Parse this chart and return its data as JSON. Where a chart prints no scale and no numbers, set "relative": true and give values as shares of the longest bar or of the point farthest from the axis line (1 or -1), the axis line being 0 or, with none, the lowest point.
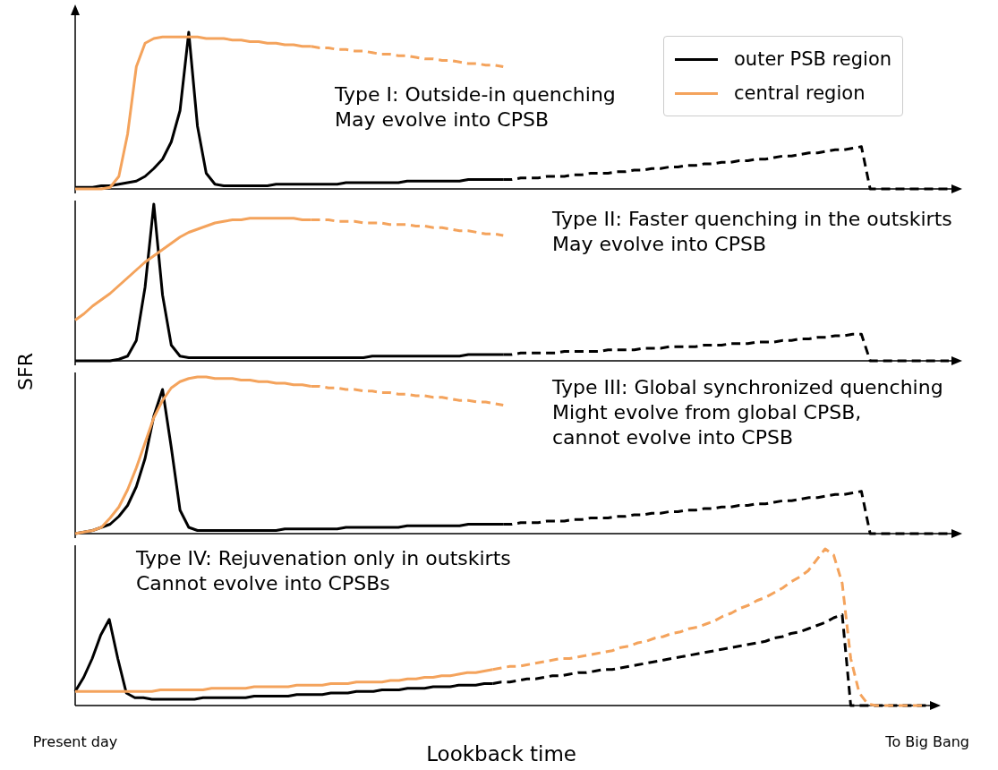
{
  "chart_data": [
    {
      "type": "line",
      "relative": true,
      "categories": [
        null,
        null,
        null,
        null,
        null,
        null,
        null,
        null,
        null,
        null,
        null,
        null,
        null,
        null,
        null,
        null,
        null,
        null,
        null,
        null,
        null,
        null,
        null,
        null,
        null,
        null,
        null,
        null,
        null,
        null,
        null,
        null,
        null,
        null,
        null,
        null,
        null,
        null,
        null,
        null,
        null,
        null,
        null,
        null,
        null,
        null,
        null,
        null,
        null,
        null,
        null,
        null,
        null,
        null,
        null,
        null,
        null,
        null,
        null,
        null,
        null,
        null,
        null,
        null,
        null,
        null,
        null,
        null,
        null,
        null,
        null,
        null,
        null,
        null,
        null,
        null,
        null,
        null,
        null,
        null,
        null,
        null,
        null,
        null,
        null,
        null,
        null,
        null,
        null,
        null,
        null,
        null,
        null,
        null,
        null,
        null,
        null,
        null,
        null,
        null,
        null
      ],
      "legend": "top right",
      "annotations": [
        "Type I: Outside-in quenching",
        "May evolve into CPSB"
      ],
      "series": [
        {
          "name": "outer PSB region",
          "color": "#000000",
          "line_style": "solid",
          "values": [
            0.01,
            0.01,
            0.01,
            0.02,
            0.02,
            0.03,
            0.04,
            0.05,
            0.08,
            0.13,
            0.19,
            0.3,
            0.5,
            1.0,
            0.4,
            0.1,
            0.03,
            0.02,
            0.02,
            0.02,
            0.02,
            0.02,
            0.02,
            0.03,
            0.03,
            0.03,
            0.03,
            0.03,
            0.03,
            0.03,
            0.03,
            0.04,
            0.04,
            0.04,
            0.04,
            0.04,
            0.04,
            0.04,
            0.05,
            0.05,
            0.05,
            0.05,
            0.05,
            0.05,
            0.05,
            0.06,
            0.06,
            0.06,
            0.06,
            0.06,
            null,
            null,
            null,
            null,
            null,
            null,
            null,
            null,
            null,
            null,
            null,
            null,
            null,
            null,
            null,
            null,
            null,
            null,
            null,
            null,
            null,
            null,
            null,
            null,
            null,
            null,
            null,
            null,
            null,
            null,
            null,
            null,
            null,
            null,
            null,
            null,
            null,
            null,
            null,
            null,
            null,
            null,
            null,
            null,
            null,
            null,
            null,
            null,
            null,
            null,
            null
          ]
        },
        {
          "color": "#000000",
          "line_style": "dashed",
          "values": [
            null,
            null,
            null,
            null,
            null,
            null,
            null,
            null,
            null,
            null,
            null,
            null,
            null,
            null,
            null,
            null,
            null,
            null,
            null,
            null,
            null,
            null,
            null,
            null,
            null,
            null,
            null,
            null,
            null,
            null,
            null,
            null,
            null,
            null,
            null,
            null,
            null,
            null,
            null,
            null,
            null,
            null,
            null,
            null,
            null,
            null,
            null,
            null,
            null,
            0.06,
            0.06,
            0.07,
            0.07,
            0.07,
            0.08,
            0.08,
            0.08,
            0.09,
            0.09,
            0.1,
            0.1,
            0.1,
            0.11,
            0.11,
            0.12,
            0.12,
            0.13,
            0.13,
            0.14,
            0.14,
            0.15,
            0.15,
            0.16,
            0.16,
            0.17,
            0.17,
            0.18,
            0.18,
            0.19,
            0.19,
            0.2,
            0.21,
            0.21,
            0.22,
            0.23,
            0.23,
            0.24,
            0.25,
            0.25,
            0.26,
            0.27,
            0,
            0,
            0,
            0,
            0,
            0,
            0,
            0,
            0,
            0
          ]
        },
        {
          "name": "central region",
          "color": "#f4a35c",
          "line_style": "solid",
          "values": [
            0,
            0,
            0,
            0,
            0.01,
            0.08,
            0.35,
            0.78,
            0.93,
            0.96,
            0.97,
            0.97,
            0.97,
            0.97,
            0.97,
            0.96,
            0.96,
            0.96,
            0.95,
            0.95,
            0.94,
            0.94,
            0.93,
            0.93,
            0.92,
            0.92,
            0.91,
            0.91,
            null,
            null,
            null,
            null,
            null,
            null,
            null,
            null,
            null,
            null,
            null,
            null,
            null,
            null,
            null,
            null,
            null,
            null,
            null,
            null,
            null,
            null,
            null,
            null,
            null,
            null,
            null,
            null,
            null,
            null,
            null,
            null,
            null,
            null,
            null,
            null,
            null,
            null,
            null,
            null,
            null,
            null,
            null,
            null,
            null,
            null,
            null,
            null,
            null,
            null,
            null,
            null,
            null,
            null,
            null,
            null,
            null,
            null,
            null,
            null,
            null,
            null,
            null,
            null,
            null,
            null,
            null,
            null,
            null,
            null,
            null,
            null,
            null
          ]
        },
        {
          "color": "#f4a35c",
          "line_style": "dashed",
          "values": [
            null,
            null,
            null,
            null,
            null,
            null,
            null,
            null,
            null,
            null,
            null,
            null,
            null,
            null,
            null,
            null,
            null,
            null,
            null,
            null,
            null,
            null,
            null,
            null,
            null,
            null,
            null,
            0.91,
            0.9,
            0.9,
            0.89,
            0.89,
            0.88,
            0.88,
            0.87,
            0.86,
            0.86,
            0.85,
            0.85,
            0.84,
            0.83,
            0.83,
            0.82,
            0.82,
            0.81,
            0.8,
            0.8,
            0.79,
            0.79,
            0.78,
            null,
            null,
            null,
            null,
            null,
            null,
            null,
            null,
            null,
            null,
            null,
            null,
            null,
            null,
            null,
            null,
            null,
            null,
            null,
            null,
            null,
            null,
            null,
            null,
            null,
            null,
            null,
            null,
            null,
            null,
            null,
            null,
            null,
            null,
            null,
            null,
            null,
            null,
            null,
            null,
            null,
            null,
            null,
            null,
            null,
            null,
            null,
            null,
            null,
            null,
            null
          ]
        }
      ]
    },
    {
      "type": "line",
      "relative": true,
      "categories": [
        null,
        null,
        null,
        null,
        null,
        null,
        null,
        null,
        null,
        null,
        null,
        null,
        null,
        null,
        null,
        null,
        null,
        null,
        null,
        null,
        null,
        null,
        null,
        null,
        null,
        null,
        null,
        null,
        null,
        null,
        null,
        null,
        null,
        null,
        null,
        null,
        null,
        null,
        null,
        null,
        null,
        null,
        null,
        null,
        null,
        null,
        null,
        null,
        null,
        null,
        null,
        null,
        null,
        null,
        null,
        null,
        null,
        null,
        null,
        null,
        null,
        null,
        null,
        null,
        null,
        null,
        null,
        null,
        null,
        null,
        null,
        null,
        null,
        null,
        null,
        null,
        null,
        null,
        null,
        null,
        null,
        null,
        null,
        null,
        null,
        null,
        null,
        null,
        null,
        null,
        null,
        null,
        null,
        null,
        null,
        null,
        null,
        null,
        null,
        null,
        null
      ],
      "ylabel": "SFR",
      "annotations": [
        "Type II: Faster quenching in the outskirts",
        "May evolve into CPSB"
      ],
      "series": [
        {
          "color": "#000000",
          "line_style": "solid",
          "values": [
            0,
            0,
            0,
            0,
            0,
            0.01,
            0.03,
            0.13,
            0.47,
            1.0,
            0.42,
            0.1,
            0.03,
            0.02,
            0.02,
            0.02,
            0.02,
            0.02,
            0.02,
            0.02,
            0.02,
            0.02,
            0.02,
            0.02,
            0.02,
            0.02,
            0.02,
            0.02,
            0.02,
            0.02,
            0.02,
            0.02,
            0.02,
            0.02,
            0.03,
            0.03,
            0.03,
            0.03,
            0.03,
            0.03,
            0.03,
            0.03,
            0.03,
            0.03,
            0.03,
            0.04,
            0.04,
            0.04,
            0.04,
            0.04,
            null,
            null,
            null,
            null,
            null,
            null,
            null,
            null,
            null,
            null,
            null,
            null,
            null,
            null,
            null,
            null,
            null,
            null,
            null,
            null,
            null,
            null,
            null,
            null,
            null,
            null,
            null,
            null,
            null,
            null,
            null,
            null,
            null,
            null,
            null,
            null,
            null,
            null,
            null,
            null,
            null,
            null,
            null,
            null,
            null,
            null,
            null,
            null,
            null,
            null,
            null
          ]
        },
        {
          "color": "#000000",
          "line_style": "dashed",
          "values": [
            null,
            null,
            null,
            null,
            null,
            null,
            null,
            null,
            null,
            null,
            null,
            null,
            null,
            null,
            null,
            null,
            null,
            null,
            null,
            null,
            null,
            null,
            null,
            null,
            null,
            null,
            null,
            null,
            null,
            null,
            null,
            null,
            null,
            null,
            null,
            null,
            null,
            null,
            null,
            null,
            null,
            null,
            null,
            null,
            null,
            null,
            null,
            null,
            null,
            0.04,
            0.04,
            0.05,
            0.05,
            0.05,
            0.05,
            0.05,
            0.06,
            0.06,
            0.06,
            0.06,
            0.06,
            0.07,
            0.07,
            0.07,
            0.07,
            0.08,
            0.08,
            0.08,
            0.09,
            0.09,
            0.09,
            0.09,
            0.1,
            0.1,
            0.1,
            0.11,
            0.11,
            0.11,
            0.12,
            0.12,
            0.12,
            0.13,
            0.13,
            0.14,
            0.14,
            0.15,
            0.15,
            0.16,
            0.16,
            0.17,
            0.17,
            0,
            0,
            0,
            0,
            0,
            0,
            0,
            0,
            0,
            0
          ]
        },
        {
          "color": "#f4a35c",
          "line_style": "solid",
          "values": [
            0.26,
            0.3,
            0.35,
            0.39,
            0.43,
            0.48,
            0.53,
            0.58,
            0.63,
            0.67,
            0.71,
            0.75,
            0.79,
            0.82,
            0.84,
            0.86,
            0.88,
            0.89,
            0.9,
            0.9,
            0.91,
            0.91,
            0.91,
            0.91,
            0.91,
            0.91,
            0.9,
            0.9,
            null,
            null,
            null,
            null,
            null,
            null,
            null,
            null,
            null,
            null,
            null,
            null,
            null,
            null,
            null,
            null,
            null,
            null,
            null,
            null,
            null,
            null,
            null,
            null,
            null,
            null,
            null,
            null,
            null,
            null,
            null,
            null,
            null,
            null,
            null,
            null,
            null,
            null,
            null,
            null,
            null,
            null,
            null,
            null,
            null,
            null,
            null,
            null,
            null,
            null,
            null,
            null,
            null,
            null,
            null,
            null,
            null,
            null,
            null,
            null,
            null,
            null,
            null,
            null,
            null,
            null,
            null,
            null,
            null,
            null,
            null,
            null,
            null
          ]
        },
        {
          "color": "#f4a35c",
          "line_style": "dashed",
          "values": [
            null,
            null,
            null,
            null,
            null,
            null,
            null,
            null,
            null,
            null,
            null,
            null,
            null,
            null,
            null,
            null,
            null,
            null,
            null,
            null,
            null,
            null,
            null,
            null,
            null,
            null,
            null,
            0.9,
            0.9,
            0.9,
            0.89,
            0.89,
            0.89,
            0.88,
            0.88,
            0.88,
            0.87,
            0.87,
            0.87,
            0.86,
            0.86,
            0.85,
            0.85,
            0.84,
            0.83,
            0.83,
            0.82,
            0.81,
            0.81,
            0.8,
            null,
            null,
            null,
            null,
            null,
            null,
            null,
            null,
            null,
            null,
            null,
            null,
            null,
            null,
            null,
            null,
            null,
            null,
            null,
            null,
            null,
            null,
            null,
            null,
            null,
            null,
            null,
            null,
            null,
            null,
            null,
            null,
            null,
            null,
            null,
            null,
            null,
            null,
            null,
            null,
            null,
            null,
            null,
            null,
            null,
            null,
            null,
            null,
            null,
            null,
            null
          ]
        }
      ]
    },
    {
      "type": "line",
      "relative": true,
      "categories": [
        null,
        null,
        null,
        null,
        null,
        null,
        null,
        null,
        null,
        null,
        null,
        null,
        null,
        null,
        null,
        null,
        null,
        null,
        null,
        null,
        null,
        null,
        null,
        null,
        null,
        null,
        null,
        null,
        null,
        null,
        null,
        null,
        null,
        null,
        null,
        null,
        null,
        null,
        null,
        null,
        null,
        null,
        null,
        null,
        null,
        null,
        null,
        null,
        null,
        null,
        null,
        null,
        null,
        null,
        null,
        null,
        null,
        null,
        null,
        null,
        null,
        null,
        null,
        null,
        null,
        null,
        null,
        null,
        null,
        null,
        null,
        null,
        null,
        null,
        null,
        null,
        null,
        null,
        null,
        null,
        null,
        null,
        null,
        null,
        null,
        null,
        null,
        null,
        null,
        null,
        null,
        null,
        null,
        null,
        null,
        null,
        null,
        null,
        null,
        null,
        null
      ],
      "annotations": [
        "Type III: Global synchronized quenching",
        "Might evolve from global CPSB,",
        "cannot evolve into CPSB"
      ],
      "series": [
        {
          "color": "#000000",
          "line_style": "solid",
          "values": [
            0,
            0.01,
            0.02,
            0.04,
            0.06,
            0.11,
            0.18,
            0.3,
            0.48,
            0.75,
            0.92,
            0.55,
            0.15,
            0.04,
            0.02,
            0.02,
            0.02,
            0.02,
            0.02,
            0.02,
            0.02,
            0.02,
            0.02,
            0.02,
            0.03,
            0.03,
            0.03,
            0.03,
            0.03,
            0.03,
            0.03,
            0.04,
            0.04,
            0.04,
            0.04,
            0.04,
            0.04,
            0.04,
            0.05,
            0.05,
            0.05,
            0.05,
            0.05,
            0.05,
            0.05,
            0.06,
            0.06,
            0.06,
            0.06,
            0.06,
            null,
            null,
            null,
            null,
            null,
            null,
            null,
            null,
            null,
            null,
            null,
            null,
            null,
            null,
            null,
            null,
            null,
            null,
            null,
            null,
            null,
            null,
            null,
            null,
            null,
            null,
            null,
            null,
            null,
            null,
            null,
            null,
            null,
            null,
            null,
            null,
            null,
            null,
            null,
            null,
            null,
            null,
            null,
            null,
            null,
            null,
            null,
            null,
            null,
            null,
            null
          ]
        },
        {
          "color": "#000000",
          "line_style": "dashed",
          "values": [
            null,
            null,
            null,
            null,
            null,
            null,
            null,
            null,
            null,
            null,
            null,
            null,
            null,
            null,
            null,
            null,
            null,
            null,
            null,
            null,
            null,
            null,
            null,
            null,
            null,
            null,
            null,
            null,
            null,
            null,
            null,
            null,
            null,
            null,
            null,
            null,
            null,
            null,
            null,
            null,
            null,
            null,
            null,
            null,
            null,
            null,
            null,
            null,
            null,
            0.06,
            0.06,
            0.07,
            0.07,
            0.07,
            0.08,
            0.08,
            0.08,
            0.09,
            0.09,
            0.1,
            0.1,
            0.1,
            0.11,
            0.11,
            0.12,
            0.12,
            0.13,
            0.13,
            0.14,
            0.14,
            0.15,
            0.15,
            0.16,
            0.16,
            0.17,
            0.17,
            0.18,
            0.18,
            0.19,
            0.19,
            0.2,
            0.21,
            0.21,
            0.22,
            0.23,
            0.23,
            0.24,
            0.25,
            0.25,
            0.26,
            0.27,
            0,
            0,
            0,
            0,
            0,
            0,
            0,
            0,
            0,
            0
          ]
        },
        {
          "color": "#f4a35c",
          "line_style": "solid",
          "values": [
            0,
            0.01,
            0.02,
            0.04,
            0.1,
            0.17,
            0.28,
            0.42,
            0.58,
            0.74,
            0.85,
            0.93,
            0.97,
            0.99,
            1.0,
            1.0,
            0.99,
            0.99,
            0.99,
            0.98,
            0.98,
            0.97,
            0.97,
            0.96,
            0.96,
            0.95,
            0.95,
            0.94,
            null,
            null,
            null,
            null,
            null,
            null,
            null,
            null,
            null,
            null,
            null,
            null,
            null,
            null,
            null,
            null,
            null,
            null,
            null,
            null,
            null,
            null,
            null,
            null,
            null,
            null,
            null,
            null,
            null,
            null,
            null,
            null,
            null,
            null,
            null,
            null,
            null,
            null,
            null,
            null,
            null,
            null,
            null,
            null,
            null,
            null,
            null,
            null,
            null,
            null,
            null,
            null,
            null,
            null,
            null,
            null,
            null,
            null,
            null,
            null,
            null,
            null,
            null,
            null,
            null,
            null,
            null,
            null,
            null,
            null,
            null,
            null,
            null
          ]
        },
        {
          "color": "#f4a35c",
          "line_style": "dashed",
          "values": [
            null,
            null,
            null,
            null,
            null,
            null,
            null,
            null,
            null,
            null,
            null,
            null,
            null,
            null,
            null,
            null,
            null,
            null,
            null,
            null,
            null,
            null,
            null,
            null,
            null,
            null,
            null,
            0.94,
            0.94,
            0.93,
            0.93,
            0.92,
            0.92,
            0.91,
            0.91,
            0.9,
            0.9,
            0.89,
            0.89,
            0.88,
            0.88,
            0.87,
            0.87,
            0.86,
            0.85,
            0.85,
            0.84,
            0.84,
            0.83,
            0.82,
            null,
            null,
            null,
            null,
            null,
            null,
            null,
            null,
            null,
            null,
            null,
            null,
            null,
            null,
            null,
            null,
            null,
            null,
            null,
            null,
            null,
            null,
            null,
            null,
            null,
            null,
            null,
            null,
            null,
            null,
            null,
            null,
            null,
            null,
            null,
            null,
            null,
            null,
            null,
            null,
            null,
            null,
            null,
            null,
            null,
            null,
            null,
            null,
            null,
            null,
            null
          ]
        }
      ]
    },
    {
      "type": "line",
      "relative": true,
      "categories": [
        "Present day",
        null,
        null,
        null,
        null,
        null,
        null,
        null,
        null,
        null,
        null,
        null,
        null,
        null,
        null,
        null,
        null,
        null,
        null,
        null,
        null,
        null,
        null,
        null,
        null,
        null,
        null,
        null,
        null,
        null,
        null,
        null,
        null,
        null,
        null,
        null,
        null,
        null,
        null,
        null,
        null,
        null,
        null,
        null,
        null,
        null,
        null,
        null,
        null,
        null,
        null,
        null,
        null,
        null,
        null,
        null,
        null,
        null,
        null,
        null,
        null,
        null,
        null,
        null,
        null,
        null,
        null,
        null,
        null,
        null,
        null,
        null,
        null,
        null,
        null,
        null,
        null,
        null,
        null,
        null,
        null,
        null,
        null,
        null,
        null,
        null,
        null,
        null,
        null,
        null,
        null,
        null,
        null,
        null,
        null,
        null,
        null,
        null,
        null,
        null,
        "To Big Bang"
      ],
      "tick_labels": "x",
      "xlabel": "Lookback time",
      "annotations": [
        "Type IV: Rejuvenation only in outskirts",
        "Cannot evolve into CPSBs"
      ],
      "series": [
        {
          "color": "#000000",
          "line_style": "solid",
          "values": [
            0.09,
            0.18,
            0.3,
            0.45,
            0.55,
            0.3,
            0.08,
            0.05,
            0.05,
            0.04,
            0.04,
            0.04,
            0.04,
            0.04,
            0.04,
            0.05,
            0.05,
            0.05,
            0.05,
            0.05,
            0.05,
            0.06,
            0.06,
            0.06,
            0.06,
            0.06,
            0.07,
            0.07,
            0.07,
            0.07,
            0.08,
            0.08,
            0.08,
            0.09,
            0.09,
            0.09,
            0.1,
            0.1,
            0.1,
            0.11,
            0.11,
            0.11,
            0.12,
            0.12,
            0.12,
            0.13,
            0.13,
            0.13,
            0.14,
            0.14,
            null,
            null,
            null,
            null,
            null,
            null,
            null,
            null,
            null,
            null,
            null,
            null,
            null,
            null,
            null,
            null,
            null,
            null,
            null,
            null,
            null,
            null,
            null,
            null,
            null,
            null,
            null,
            null,
            null,
            null,
            null,
            null,
            null,
            null,
            null,
            null,
            null,
            null,
            null,
            null,
            null,
            null,
            null,
            null,
            null,
            null,
            null,
            null,
            null,
            null,
            null
          ]
        },
        {
          "color": "#000000",
          "line_style": "dashed",
          "values": [
            null,
            null,
            null,
            null,
            null,
            null,
            null,
            null,
            null,
            null,
            null,
            null,
            null,
            null,
            null,
            null,
            null,
            null,
            null,
            null,
            null,
            null,
            null,
            null,
            null,
            null,
            null,
            null,
            null,
            null,
            null,
            null,
            null,
            null,
            null,
            null,
            null,
            null,
            null,
            null,
            null,
            null,
            null,
            null,
            null,
            null,
            null,
            null,
            null,
            0.14,
            0.15,
            0.15,
            0.16,
            0.17,
            0.17,
            0.18,
            0.19,
            0.19,
            0.2,
            0.21,
            0.21,
            0.22,
            0.23,
            0.23,
            0.24,
            0.25,
            0.26,
            0.27,
            0.28,
            0.29,
            0.3,
            0.31,
            0.32,
            0.33,
            0.34,
            0.35,
            0.36,
            0.37,
            0.38,
            0.39,
            0.4,
            0.41,
            0.43,
            0.44,
            0.46,
            0.47,
            0.49,
            0.51,
            0.53,
            0.56,
            0.58,
            0,
            0,
            0,
            0,
            0,
            0,
            0,
            0,
            0,
            0
          ]
        },
        {
          "color": "#f4a35c",
          "line_style": "solid",
          "values": [
            0.09,
            0.09,
            0.09,
            0.09,
            0.09,
            0.09,
            0.09,
            0.09,
            0.09,
            0.09,
            0.1,
            0.1,
            0.1,
            0.1,
            0.1,
            0.1,
            0.11,
            0.11,
            0.11,
            0.11,
            0.11,
            0.12,
            0.12,
            0.12,
            0.12,
            0.12,
            0.13,
            0.13,
            0.13,
            0.13,
            0.14,
            0.14,
            0.14,
            0.15,
            0.15,
            0.15,
            0.15,
            0.16,
            0.16,
            0.17,
            0.17,
            0.18,
            0.18,
            0.19,
            0.19,
            0.2,
            0.21,
            0.21,
            0.22,
            0.23,
            null,
            null,
            null,
            null,
            null,
            null,
            null,
            null,
            null,
            null,
            null,
            null,
            null,
            null,
            null,
            null,
            null,
            null,
            null,
            null,
            null,
            null,
            null,
            null,
            null,
            null,
            null,
            null,
            null,
            null,
            null,
            null,
            null,
            null,
            null,
            null,
            null,
            null,
            null,
            null,
            null,
            null,
            null,
            null,
            null,
            null,
            null,
            null,
            null,
            null,
            null
          ]
        },
        {
          "color": "#f4a35c",
          "line_style": "dashed",
          "values": [
            null,
            null,
            null,
            null,
            null,
            null,
            null,
            null,
            null,
            null,
            null,
            null,
            null,
            null,
            null,
            null,
            null,
            null,
            null,
            null,
            null,
            null,
            null,
            null,
            null,
            null,
            null,
            null,
            null,
            null,
            null,
            null,
            null,
            null,
            null,
            null,
            null,
            null,
            null,
            null,
            null,
            null,
            null,
            null,
            null,
            null,
            null,
            null,
            null,
            0.23,
            0.24,
            0.25,
            0.25,
            0.26,
            0.27,
            0.28,
            0.29,
            0.3,
            0.3,
            0.31,
            0.32,
            0.33,
            0.34,
            0.35,
            0.37,
            0.38,
            0.4,
            0.41,
            0.43,
            0.44,
            0.46,
            0.47,
            0.49,
            0.5,
            0.52,
            0.54,
            0.57,
            0.59,
            0.62,
            0.64,
            0.67,
            0.69,
            0.72,
            0.75,
            0.79,
            0.82,
            0.86,
            0.93,
            1.0,
            0.96,
            0.78,
            0.3,
            0.08,
            0.01,
            0,
            0,
            0,
            0,
            0,
            0,
            0
          ]
        }
      ]
    }
  ]
}
